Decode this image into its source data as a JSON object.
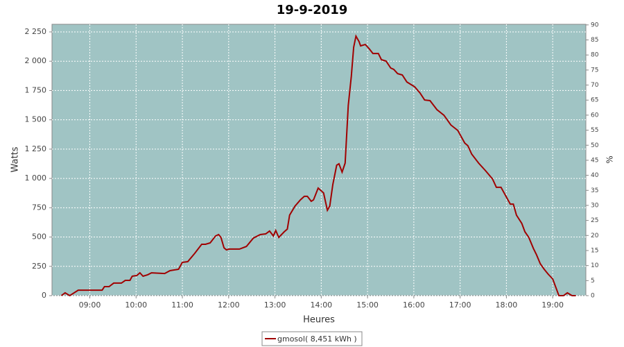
{
  "chart_data": {
    "type": "line",
    "title": "19-9-2019",
    "x_label": "Heures",
    "y_label": "Watts",
    "y2_label": "%",
    "x": [
      503,
      508,
      514,
      525,
      556,
      559,
      565,
      571,
      581,
      586,
      592,
      595,
      601,
      605,
      609,
      615,
      620,
      637,
      644,
      655,
      660,
      667,
      676,
      685,
      690,
      696,
      703,
      707,
      710,
      714,
      717,
      721,
      734,
      743,
      752,
      761,
      768,
      773,
      778,
      781,
      785,
      792,
      796,
      799,
      806,
      813,
      818,
      822,
      827,
      830,
      836,
      843,
      848,
      851,
      855,
      860,
      863,
      867,
      871,
      875,
      879,
      882,
      885,
      889,
      891,
      897,
      902,
      907,
      914,
      918,
      924,
      930,
      934,
      939,
      945,
      951,
      961,
      968,
      974,
      981,
      990,
      999,
      1008,
      1017,
      1026,
      1030,
      1035,
      1044,
      1053,
      1062,
      1067,
      1073,
      1080,
      1085,
      1089,
      1093,
      1100,
      1104,
      1109,
      1115,
      1119,
      1124,
      1129,
      1134,
      1140,
      1148,
      1154,
      1159,
      1165,
      1170
    ],
    "series": [
      {
        "name": "gmosol( 8,451 kWh )",
        "color": "#a00000",
        "values": [
          0,
          24,
          0,
          47,
          47,
          77,
          77,
          107,
          107,
          130,
          130,
          166,
          172,
          195,
          166,
          178,
          195,
          189,
          213,
          225,
          284,
          290,
          361,
          438,
          438,
          450,
          509,
          521,
          497,
          408,
          391,
          397,
          397,
          420,
          491,
          521,
          527,
          551,
          509,
          556,
          497,
          545,
          568,
          687,
          764,
          817,
          847,
          847,
          805,
          817,
          918,
          876,
          728,
          764,
          947,
          1113,
          1125,
          1054,
          1131,
          1622,
          1871,
          2119,
          2214,
          2167,
          2131,
          2143,
          2108,
          2066,
          2066,
          2013,
          2001,
          1942,
          1930,
          1894,
          1883,
          1823,
          1782,
          1729,
          1669,
          1664,
          1587,
          1539,
          1456,
          1409,
          1302,
          1279,
          1208,
          1131,
          1066,
          995,
          924,
          924,
          841,
          781,
          781,
          687,
          616,
          545,
          497,
          403,
          349,
          272,
          225,
          184,
          142,
          0,
          0,
          24,
          0,
          0
        ]
      }
    ],
    "xlim": [
      491,
      1183
    ],
    "xticks": [
      {
        "value": 540,
        "label": "09:00"
      },
      {
        "value": 600,
        "label": "10:00"
      },
      {
        "value": 660,
        "label": "11:00"
      },
      {
        "value": 720,
        "label": "12:00"
      },
      {
        "value": 780,
        "label": "13:00"
      },
      {
        "value": 840,
        "label": "14:00"
      },
      {
        "value": 900,
        "label": "15:00"
      },
      {
        "value": 960,
        "label": "16:00"
      },
      {
        "value": 1020,
        "label": "17:00"
      },
      {
        "value": 1080,
        "label": "18:00"
      },
      {
        "value": 1140,
        "label": "19:00"
      }
    ],
    "ylim": [
      0,
      2315
    ],
    "yticks": [
      0,
      250,
      500,
      750,
      {
        "value": 1000,
        "label": "1 000"
      },
      {
        "value": 1250,
        "label": "1 250"
      },
      {
        "value": 1500,
        "label": "1 500"
      },
      {
        "value": 1750,
        "label": "1 750"
      },
      {
        "value": 2000,
        "label": "2 000"
      },
      {
        "value": 2250,
        "label": "2 250"
      }
    ],
    "y2lim": [
      0,
      90.2
    ],
    "y2ticks": [
      0,
      5,
      10,
      15,
      20,
      25,
      30,
      35,
      40,
      45,
      50,
      55,
      60,
      65,
      70,
      75,
      80,
      85,
      90
    ],
    "grid": true,
    "legend": "bottom",
    "plot_color": "#a0c4c4"
  }
}
